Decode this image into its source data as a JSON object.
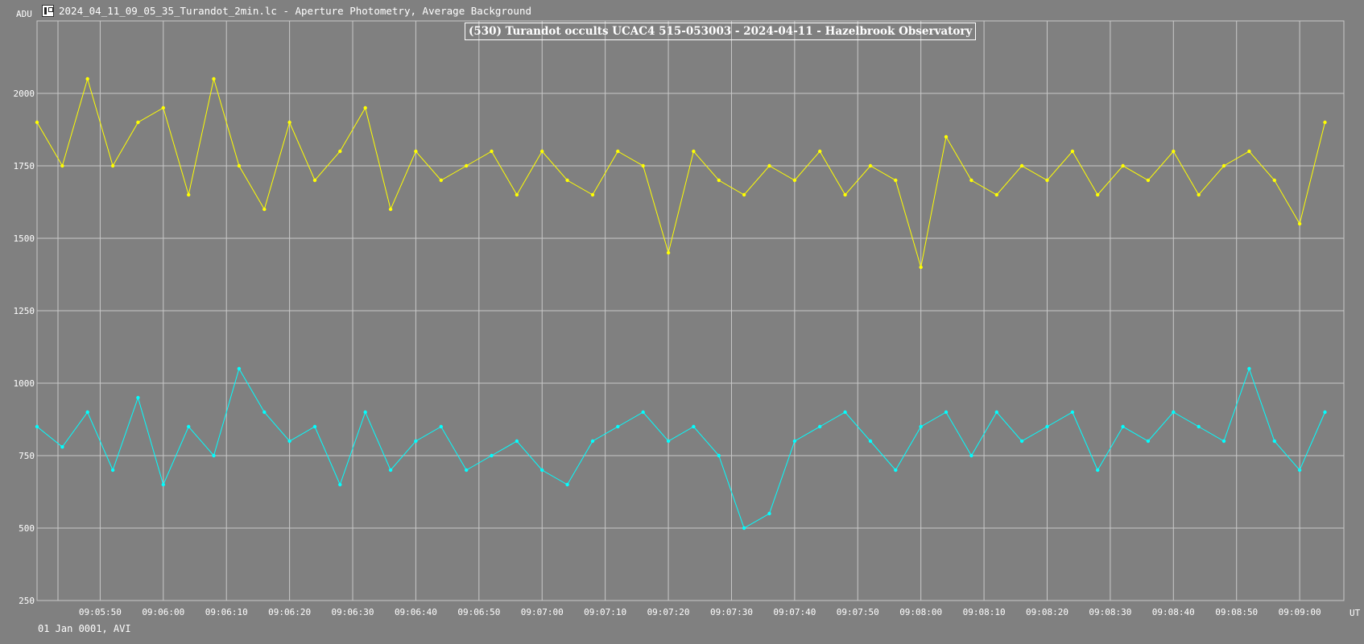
{
  "header": {
    "title": "2024_04_11_09_05_35_Turandot_2min.lc - Aperture Photometry, Average Background",
    "icon": "light-curve-app-icon"
  },
  "footer": {
    "text": "01 Jan 0001, AVI"
  },
  "chart_data": {
    "type": "line",
    "title": "(530) Turandot occults UCAC4 515-053003 - 2024-04-11 - Hazelbrook Observatory",
    "ylabel": "ADU",
    "xlabel": "UT",
    "ylim": [
      250,
      2250
    ],
    "yticks": [
      250,
      500,
      750,
      1000,
      1250,
      1500,
      1750,
      2000
    ],
    "xlim": [
      "09:05:40",
      "09:09:07"
    ],
    "xticks": [
      "09:05:50",
      "09:06:00",
      "09:06:10",
      "09:06:20",
      "09:06:30",
      "09:06:40",
      "09:06:50",
      "09:07:00",
      "09:07:10",
      "09:07:20",
      "09:07:30",
      "09:07:40",
      "09:07:50",
      "09:08:00",
      "09:08:10",
      "09:08:20",
      "09:08:30",
      "09:08:40",
      "09:08:50",
      "09:09:00"
    ],
    "grid": true,
    "background": "#808080",
    "colors": {
      "series1": "#ffff00",
      "series2": "#00ffff",
      "grid": "#c8c8c8"
    },
    "series": [
      {
        "color": "#ffff00",
        "x": [
          "09:05:40",
          "09:05:44",
          "09:05:48",
          "09:05:52",
          "09:05:56",
          "09:06:00",
          "09:06:04",
          "09:06:08",
          "09:06:12",
          "09:06:16",
          "09:06:20",
          "09:06:24",
          "09:06:28",
          "09:06:32",
          "09:06:36",
          "09:06:40",
          "09:06:44",
          "09:06:48",
          "09:06:52",
          "09:06:56",
          "09:07:00",
          "09:07:04",
          "09:07:08",
          "09:07:12",
          "09:07:16",
          "09:07:20",
          "09:07:24",
          "09:07:28",
          "09:07:32",
          "09:07:36",
          "09:07:40",
          "09:07:44",
          "09:07:48",
          "09:07:52",
          "09:07:56",
          "09:08:00",
          "09:08:04",
          "09:08:08",
          "09:08:12",
          "09:08:16",
          "09:08:20",
          "09:08:24",
          "09:08:28",
          "09:08:32",
          "09:08:36",
          "09:08:40",
          "09:08:44",
          "09:08:48",
          "09:08:52",
          "09:08:56",
          "09:09:00",
          "09:09:04"
        ],
        "y": [
          1900,
          1750,
          2050,
          1750,
          1900,
          1950,
          1650,
          2050,
          1750,
          1600,
          1900,
          1700,
          1800,
          1950,
          1600,
          1800,
          1700,
          1750,
          1800,
          1650,
          1800,
          1700,
          1650,
          1800,
          1750,
          1450,
          1800,
          1700,
          1650,
          1750,
          1700,
          1800,
          1650,
          1750,
          1700,
          1400,
          1850,
          1700,
          1650,
          1750,
          1700,
          1800,
          1650,
          1750,
          1700,
          1800,
          1650,
          1750,
          1800,
          1700,
          1550,
          1900
        ]
      },
      {
        "color": "#00ffff",
        "x": [
          "09:05:40",
          "09:05:44",
          "09:05:48",
          "09:05:52",
          "09:05:56",
          "09:06:00",
          "09:06:04",
          "09:06:08",
          "09:06:12",
          "09:06:16",
          "09:06:20",
          "09:06:24",
          "09:06:28",
          "09:06:32",
          "09:06:36",
          "09:06:40",
          "09:06:44",
          "09:06:48",
          "09:06:52",
          "09:06:56",
          "09:07:00",
          "09:07:04",
          "09:07:08",
          "09:07:12",
          "09:07:16",
          "09:07:20",
          "09:07:24",
          "09:07:28",
          "09:07:32",
          "09:07:36",
          "09:07:40",
          "09:07:44",
          "09:07:48",
          "09:07:52",
          "09:07:56",
          "09:08:00",
          "09:08:04",
          "09:08:08",
          "09:08:12",
          "09:08:16",
          "09:08:20",
          "09:08:24",
          "09:08:28",
          "09:08:32",
          "09:08:36",
          "09:08:40",
          "09:08:44",
          "09:08:48",
          "09:08:52",
          "09:08:56",
          "09:09:00",
          "09:09:04"
        ],
        "y": [
          850,
          780,
          900,
          700,
          950,
          650,
          850,
          750,
          1050,
          900,
          800,
          850,
          650,
          900,
          700,
          800,
          850,
          700,
          750,
          800,
          700,
          650,
          800,
          850,
          900,
          800,
          850,
          750,
          500,
          550,
          800,
          850,
          900,
          800,
          700,
          850,
          900,
          750,
          900,
          800,
          850,
          900,
          700,
          850,
          800,
          900,
          850,
          800,
          1050,
          800,
          700,
          900
        ]
      }
    ]
  }
}
